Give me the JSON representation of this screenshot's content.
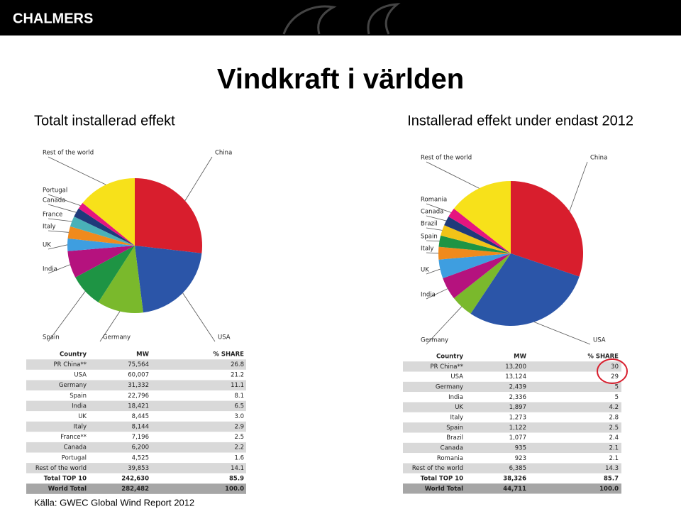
{
  "header": {
    "logo": "CHALMERS"
  },
  "title": "Vindkraft i världen",
  "chart_data": [
    {
      "type": "pie",
      "title": "Totalt installerad effekt",
      "categories": [
        "China",
        "USA",
        "Germany",
        "Spain",
        "India",
        "UK",
        "Italy",
        "France",
        "Canada",
        "Portugal",
        "Rest of the world"
      ],
      "values": [
        26.8,
        21.2,
        11.1,
        8.1,
        6.5,
        3.0,
        2.9,
        2.5,
        2.2,
        1.6,
        14.1
      ],
      "colors": [
        "#d81e2d",
        "#2b55a8",
        "#7ab92c",
        "#1e9444",
        "#b5127e",
        "#3e9ee0",
        "#f08a1c",
        "#49b1b8",
        "#1f3a7a",
        "#e6157f",
        "#f7e11a"
      ]
    },
    {
      "type": "pie",
      "title": "Installerad effekt under endast 2012",
      "categories": [
        "China",
        "USA",
        "Germany",
        "India",
        "UK",
        "Italy",
        "Spain",
        "Brazil",
        "Canada",
        "Romania",
        "Rest of the world"
      ],
      "values": [
        30,
        29,
        5,
        5,
        4.2,
        2.8,
        2.5,
        2.4,
        2.1,
        2.1,
        14.3
      ],
      "colors": [
        "#d81e2d",
        "#2b55a8",
        "#7ab92c",
        "#b5127e",
        "#3e9ee0",
        "#f08a1c",
        "#1e9444",
        "#f2c318",
        "#1f3a7a",
        "#e6157f",
        "#f7e11a"
      ]
    }
  ],
  "tables": [
    {
      "columns": [
        "Country",
        "MW",
        "% SHARE"
      ],
      "rows": [
        [
          "PR China**",
          "75,564",
          "26.8"
        ],
        [
          "USA",
          "60,007",
          "21.2"
        ],
        [
          "Germany",
          "31,332",
          "11.1"
        ],
        [
          "Spain",
          "22,796",
          "8.1"
        ],
        [
          "India",
          "18,421",
          "6.5"
        ],
        [
          "UK",
          "8,445",
          "3.0"
        ],
        [
          "Italy",
          "8,144",
          "2.9"
        ],
        [
          "France**",
          "7,196",
          "2.5"
        ],
        [
          "Canada",
          "6,200",
          "2.2"
        ],
        [
          "Portugal",
          "4,525",
          "1.6"
        ],
        [
          "Rest of the world",
          "39,853",
          "14.1"
        ],
        [
          "Total TOP 10",
          "242,630",
          "85.9"
        ],
        [
          "World Total",
          "282,482",
          "100.0"
        ]
      ]
    },
    {
      "columns": [
        "Country",
        "MW",
        "% SHARE"
      ],
      "rows": [
        [
          "PR China**",
          "13,200",
          "30"
        ],
        [
          "USA",
          "13,124",
          "29"
        ],
        [
          "Germany",
          "2,439",
          "5"
        ],
        [
          "India",
          "2,336",
          "5"
        ],
        [
          "UK",
          "1,897",
          "4.2"
        ],
        [
          "Italy",
          "1,273",
          "2.8"
        ],
        [
          "Spain",
          "1,122",
          "2.5"
        ],
        [
          "Brazil",
          "1,077",
          "2.4"
        ],
        [
          "Canada",
          "935",
          "2.1"
        ],
        [
          "Romania",
          "923",
          "2.1"
        ],
        [
          "Rest of the world",
          "6,385",
          "14.3"
        ],
        [
          "Total TOP 10",
          "38,326",
          "85.7"
        ],
        [
          "World Total",
          "44,711",
          "100.0"
        ]
      ]
    }
  ],
  "source": "Källa: GWEC Global Wind Report 2012"
}
